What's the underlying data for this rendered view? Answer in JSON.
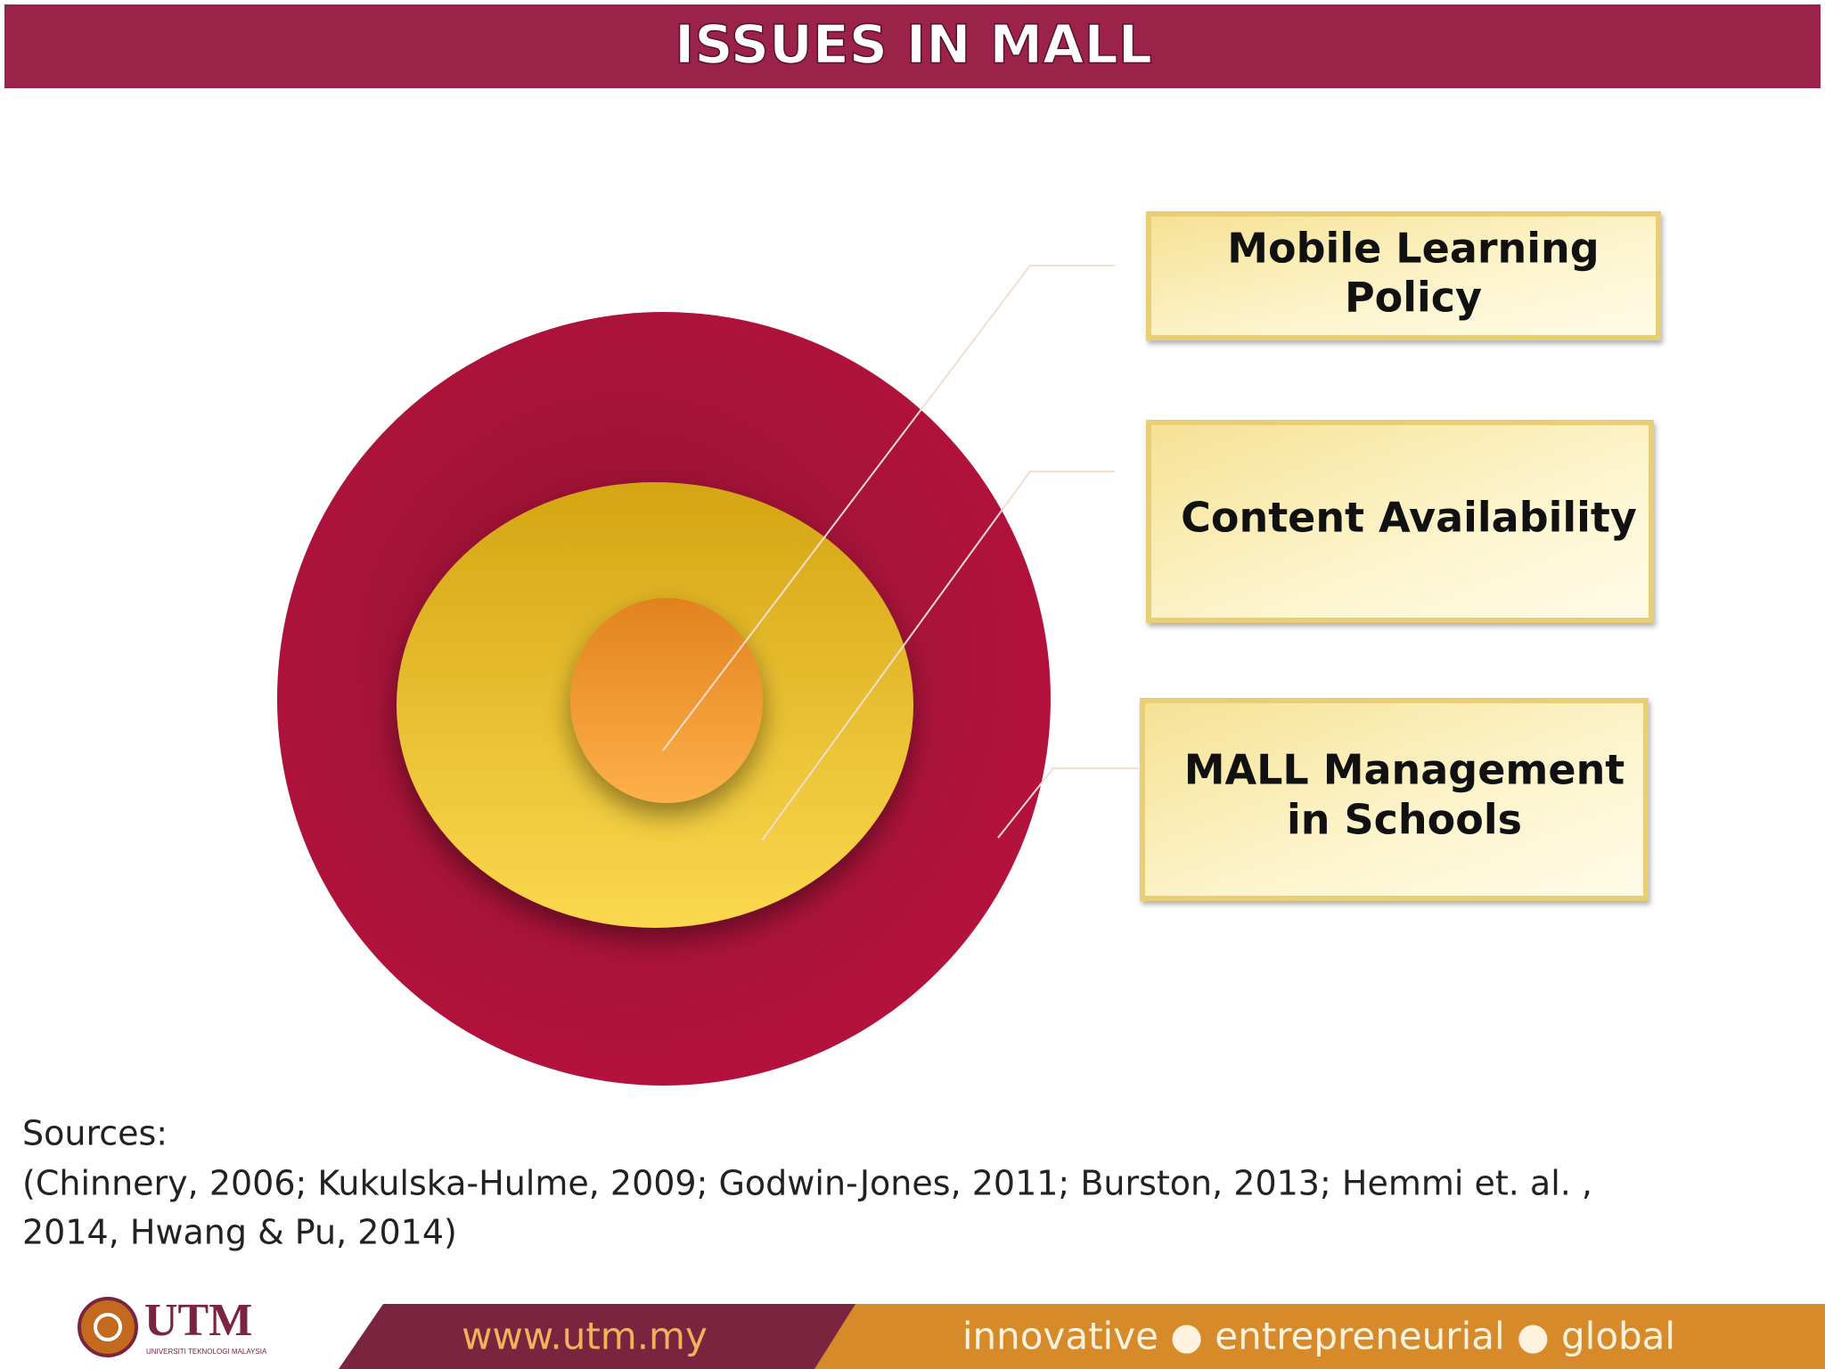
{
  "header": {
    "title": "ISSUES IN MALL"
  },
  "issues": [
    {
      "lines": [
        "Mobile Learning",
        "Policy"
      ]
    },
    {
      "lines": [
        "Content Availability"
      ]
    },
    {
      "lines": [
        "MALL Management",
        "in Schools"
      ]
    }
  ],
  "sources": {
    "label": "Sources:",
    "lines": [
      "(Chinnery, 2006; Kukulska-Hulme, 2009; Godwin-Jones, 2011; Burston, 2013; Hemmi et. al. ,",
      "2014, Hwang & Pu, 2014)"
    ]
  },
  "footer": {
    "logo": "UTM",
    "logo_subtitle": "UNIVERSITI TEKNOLOGI MALAYSIA",
    "url": "www.utm.my",
    "tagline": "innovative ● entrepreneurial ● global"
  }
}
